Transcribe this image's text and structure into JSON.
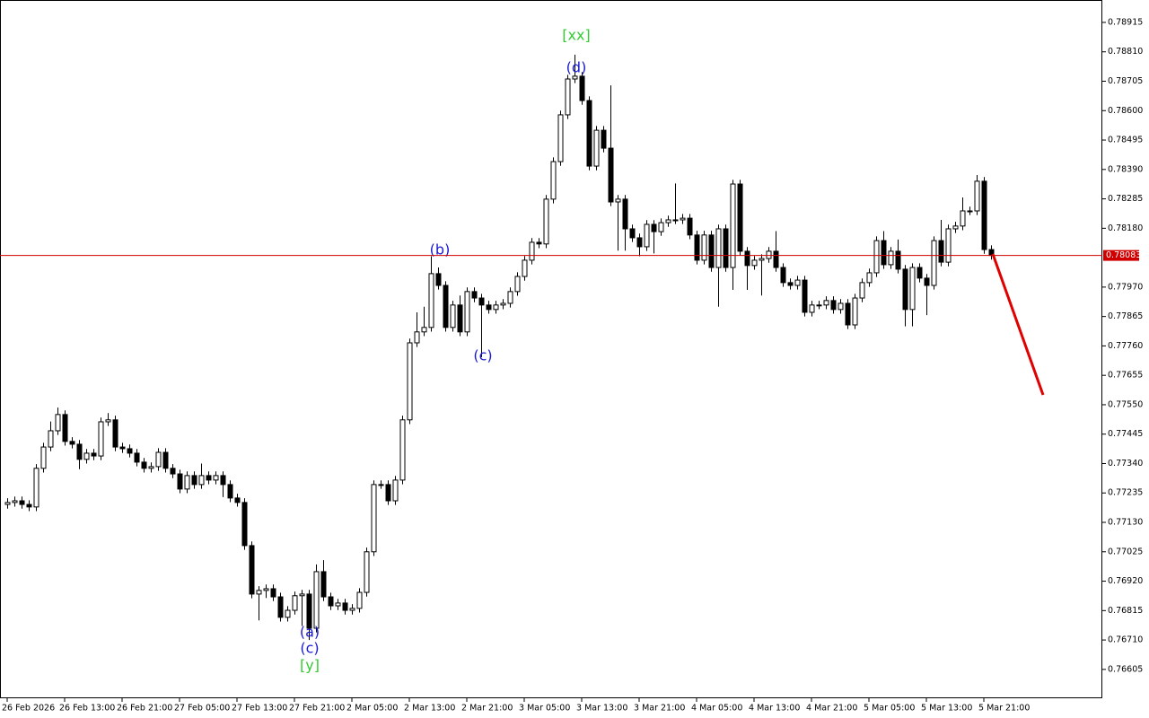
{
  "chart_data": {
    "type": "candlestick",
    "x": [
      "26 Feb 2026",
      null,
      null,
      null,
      null,
      null,
      null,
      null,
      "26 Feb 13:00",
      null,
      null,
      null,
      null,
      null,
      null,
      null,
      "26 Feb 21:00",
      null,
      null,
      null,
      null,
      null,
      null,
      null,
      "27 Feb 05:00",
      null,
      null,
      null,
      null,
      null,
      null,
      null,
      "27 Feb 13:00",
      null,
      null,
      null,
      null,
      null,
      null,
      null,
      "27 Feb 21:00",
      null,
      null,
      null,
      null,
      null,
      null,
      null,
      "2 Mar 05:00",
      null,
      null,
      null,
      null,
      null,
      null,
      null,
      "2 Mar 13:00",
      null,
      null,
      null,
      null,
      null,
      null,
      null,
      "2 Mar 21:00",
      null,
      null,
      null,
      null,
      null,
      null,
      null,
      "3 Mar 05:00",
      null,
      null,
      null,
      null,
      null,
      null,
      null,
      "3 Mar 13:00",
      null,
      null,
      null,
      null,
      null,
      null,
      null,
      "3 Mar 21:00",
      null,
      null,
      null,
      null,
      null,
      null,
      null,
      "4 Mar 05:00",
      null,
      null,
      null,
      null,
      null,
      null,
      null,
      "4 Mar 13:00",
      null,
      null,
      null,
      null,
      null,
      null,
      null,
      "4 Mar 21:00",
      null,
      null,
      null,
      null,
      null,
      null,
      null,
      "5 Mar 05:00",
      null,
      null,
      null,
      null,
      null,
      null,
      null,
      "5 Mar 13:00",
      null,
      null,
      null,
      null,
      null,
      null,
      null,
      "5 Mar 21:00",
      null
    ],
    "open": [
      0.77194,
      0.77201,
      0.77207,
      0.77194,
      0.77185,
      0.77323,
      0.77399,
      0.77457,
      0.77515,
      0.77419,
      0.77409,
      0.77355,
      0.77377,
      0.77367,
      0.77489,
      0.77496,
      0.77399,
      0.77393,
      0.77377,
      0.77345,
      0.77323,
      0.77329,
      0.7738,
      0.77323,
      0.77303,
      0.77249,
      0.77297,
      0.77265,
      0.77297,
      0.77281,
      0.77297,
      0.77265,
      0.77217,
      0.77201,
      0.77047,
      0.76874,
      0.76887,
      0.76893,
      0.76864,
      0.76791,
      0.76816,
      0.76868,
      0.76874,
      0.76752,
      0.76954,
      0.76864,
      0.76832,
      0.76842,
      0.76816,
      0.76823,
      0.7688,
      0.77025,
      0.77265,
      0.77265,
      0.77207,
      0.77281,
      0.77496,
      0.77771,
      0.7781,
      0.77826,
      0.78018,
      0.77976,
      0.77826,
      0.77906,
      0.7781,
      0.77954,
      0.77931,
      0.77906,
      0.7789,
      0.77906,
      0.77912,
      0.77954,
      0.78008,
      0.78066,
      0.7813,
      0.78124,
      0.78284,
      0.78418,
      0.78585,
      0.78713,
      0.78723,
      0.78636,
      0.78402,
      0.7853,
      0.78466,
      0.78274,
      0.78284,
      0.78178,
      0.78146,
      0.78114,
      0.78194,
      0.78168,
      0.782,
      0.7821,
      0.7821,
      0.78216,
      0.78156,
      0.78066,
      0.78156,
      0.7804,
      0.78178,
      0.7804,
      0.78338,
      0.78098,
      0.78047,
      0.78066,
      0.78072,
      0.78098,
      0.7804,
      0.77986,
      0.77976,
      0.77995,
      0.7788,
      0.77906,
      0.77906,
      0.77922,
      0.7789,
      0.77912,
      0.77835,
      0.77931,
      0.77986,
      0.78021,
      0.78136,
      0.7805,
      0.78098,
      0.78034,
      0.7789,
      0.7804,
      0.78002,
      0.77976,
      0.78136,
      0.78059,
      0.78178,
      0.78188,
      0.78242,
      0.78242,
      0.78348,
      0.78104
    ],
    "high": [
      0.77216,
      0.77222,
      0.77222,
      0.77209,
      0.77338,
      0.77414,
      0.7749,
      0.7754,
      0.7753,
      0.77434,
      0.77424,
      0.77392,
      0.77392,
      0.77504,
      0.7752,
      0.77511,
      0.77414,
      0.77408,
      0.77392,
      0.7736,
      0.77344,
      0.77395,
      0.77395,
      0.77338,
      0.77318,
      0.77312,
      0.77312,
      0.7734,
      0.77312,
      0.77312,
      0.77312,
      0.7728,
      0.77232,
      0.77216,
      0.77062,
      0.76902,
      0.76908,
      0.76908,
      0.76879,
      0.76831,
      0.76883,
      0.76889,
      0.76889,
      0.7698,
      0.76995,
      0.76879,
      0.76857,
      0.76857,
      0.76838,
      0.76895,
      0.7704,
      0.7728,
      0.7728,
      0.7728,
      0.77296,
      0.77511,
      0.77786,
      0.7788,
      0.779,
      0.7808,
      0.7804,
      0.77991,
      0.77921,
      0.7794,
      0.77969,
      0.77969,
      0.77946,
      0.77921,
      0.77921,
      0.77927,
      0.77969,
      0.78023,
      0.78081,
      0.78145,
      0.78145,
      0.78299,
      0.78433,
      0.786,
      0.78728,
      0.788,
      0.78738,
      0.78651,
      0.78545,
      0.78545,
      0.7869,
      0.78299,
      0.78299,
      0.78193,
      0.78161,
      0.78209,
      0.78209,
      0.78215,
      0.78225,
      0.7834,
      0.78231,
      0.78231,
      0.78171,
      0.78171,
      0.78171,
      0.78193,
      0.78193,
      0.78353,
      0.78353,
      0.78113,
      0.78081,
      0.78087,
      0.78113,
      0.7817,
      0.78055,
      0.78001,
      0.7801,
      0.7801,
      0.77921,
      0.77921,
      0.77937,
      0.77937,
      0.77927,
      0.77927,
      0.77946,
      0.78001,
      0.78036,
      0.78151,
      0.7817,
      0.78113,
      0.7814,
      0.78049,
      0.78055,
      0.78055,
      0.78017,
      0.78151,
      0.7821,
      0.78193,
      0.78203,
      0.7829,
      0.78257,
      0.7837,
      0.78363,
      0.78119
    ],
    "low": [
      0.77179,
      0.77186,
      0.77179,
      0.7717,
      0.7717,
      0.77308,
      0.77384,
      0.77442,
      0.77404,
      0.77394,
      0.7732,
      0.7734,
      0.77352,
      0.77352,
      0.77474,
      0.77384,
      0.77378,
      0.77362,
      0.7733,
      0.77308,
      0.77308,
      0.77314,
      0.77308,
      0.77288,
      0.77234,
      0.77234,
      0.7725,
      0.7725,
      0.77266,
      0.77266,
      0.7722,
      0.77202,
      0.77186,
      0.77032,
      0.76859,
      0.7678,
      0.7686,
      0.76849,
      0.76776,
      0.76776,
      0.76801,
      0.7676,
      0.7671,
      0.76737,
      0.76849,
      0.76817,
      0.76817,
      0.76801,
      0.76801,
      0.76808,
      0.76865,
      0.7701,
      0.7725,
      0.77192,
      0.77192,
      0.77266,
      0.77481,
      0.77756,
      0.77795,
      0.77811,
      0.77961,
      0.77811,
      0.77811,
      0.77795,
      0.77795,
      0.77916,
      0.7772,
      0.77875,
      0.77875,
      0.77891,
      0.77897,
      0.77939,
      0.77993,
      0.78051,
      0.78109,
      0.78109,
      0.78269,
      0.78403,
      0.7857,
      0.78698,
      0.78621,
      0.78387,
      0.78387,
      0.78451,
      0.78259,
      0.781,
      0.781,
      0.78131,
      0.7808,
      0.78099,
      0.7809,
      0.78153,
      0.78185,
      0.78195,
      0.78195,
      0.78141,
      0.78051,
      0.78051,
      0.78025,
      0.779,
      0.78025,
      0.7796,
      0.78083,
      0.7796,
      0.78032,
      0.7794,
      0.78057,
      0.78025,
      0.77971,
      0.77961,
      0.77961,
      0.77865,
      0.77865,
      0.77891,
      0.77891,
      0.77875,
      0.77875,
      0.7782,
      0.7782,
      0.77916,
      0.77971,
      0.78006,
      0.78035,
      0.78035,
      0.78019,
      0.7783,
      0.7783,
      0.77987,
      0.7787,
      0.77961,
      0.78044,
      0.78044,
      0.78163,
      0.78173,
      0.78227,
      0.78227,
      0.78089,
      0.78068
    ],
    "close": [
      0.77201,
      0.77207,
      0.77194,
      0.77185,
      0.77323,
      0.77399,
      0.77457,
      0.77515,
      0.77419,
      0.77409,
      0.77355,
      0.77377,
      0.77367,
      0.77489,
      0.77496,
      0.77399,
      0.77393,
      0.77377,
      0.77345,
      0.77323,
      0.77329,
      0.7738,
      0.77323,
      0.77303,
      0.77249,
      0.77297,
      0.77265,
      0.77297,
      0.77281,
      0.77297,
      0.77265,
      0.77217,
      0.77201,
      0.77047,
      0.76874,
      0.76887,
      0.76893,
      0.76864,
      0.76791,
      0.76816,
      0.76868,
      0.76874,
      0.76752,
      0.76954,
      0.76864,
      0.76832,
      0.76842,
      0.76816,
      0.76823,
      0.7688,
      0.77025,
      0.77265,
      0.77265,
      0.77207,
      0.77281,
      0.77496,
      0.77771,
      0.7781,
      0.77826,
      0.78018,
      0.77976,
      0.77826,
      0.77906,
      0.7781,
      0.77954,
      0.77931,
      0.77906,
      0.7789,
      0.77906,
      0.77912,
      0.77954,
      0.78008,
      0.78066,
      0.7813,
      0.78124,
      0.78284,
      0.78418,
      0.78585,
      0.78713,
      0.78723,
      0.78636,
      0.78402,
      0.7853,
      0.78466,
      0.78274,
      0.78284,
      0.78178,
      0.78146,
      0.78114,
      0.78194,
      0.78168,
      0.782,
      0.7821,
      0.7821,
      0.78216,
      0.78156,
      0.78066,
      0.78156,
      0.7804,
      0.78178,
      0.7804,
      0.78338,
      0.78098,
      0.78047,
      0.78066,
      0.78072,
      0.78098,
      0.7804,
      0.77986,
      0.77976,
      0.77995,
      0.7788,
      0.77906,
      0.77906,
      0.77922,
      0.7789,
      0.77912,
      0.77835,
      0.77931,
      0.77986,
      0.78021,
      0.78136,
      0.7805,
      0.78098,
      0.78034,
      0.7789,
      0.7804,
      0.78002,
      0.77976,
      0.78136,
      0.78059,
      0.78178,
      0.78188,
      0.78242,
      0.78242,
      0.78348,
      0.78104,
      0.78083
    ],
    "up_color": "#ffffff",
    "down_color": "#000000",
    "ylim": [
      0.76502,
      0.78995
    ],
    "yticks": [
      0.78915,
      {
        "value": 0.7881,
        "label": "0.78810"
      },
      0.78705,
      {
        "value": 0.786,
        "label": "0.78600"
      },
      0.78495,
      {
        "value": 0.7839,
        "label": "0.78390"
      },
      0.78285,
      {
        "value": 0.7818,
        "label": "0.78180"
      },
      {
        "value": 0.7797,
        "label": "0.77970"
      },
      0.77865,
      {
        "value": 0.7776,
        "label": "0.77760"
      },
      0.77655,
      {
        "value": 0.7755,
        "label": "0.77550"
      },
      0.77445,
      {
        "value": 0.7734,
        "label": "0.77340"
      },
      0.77235,
      {
        "value": 0.7713,
        "label": "0.77130"
      },
      0.77025,
      {
        "value": 0.7692,
        "label": "0.76920"
      },
      0.76815,
      {
        "value": 0.7671,
        "label": "0.76710"
      },
      0.76605
    ],
    "price_line": 0.78083,
    "price_line_color": "#d00000",
    "annotations": [
      "[xx]",
      "(d)",
      "(b)",
      "(c)",
      "(a)",
      "(c)",
      "[y]"
    ]
  }
}
